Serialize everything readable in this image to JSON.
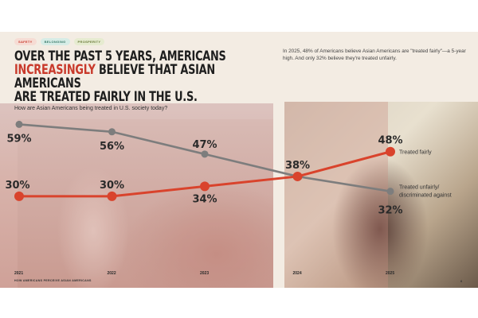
{
  "tags": [
    {
      "label": "SAFETY",
      "bg": "#f6dcd4",
      "fg": "#c8392b"
    },
    {
      "label": "BELONGING",
      "bg": "#d6ece6",
      "fg": "#3a7a6a"
    },
    {
      "label": "PROSPERITY",
      "bg": "#e6ebd0",
      "fg": "#6a7a3a"
    }
  ],
  "title": {
    "line1": "OVER THE PAST 5 YEARS, AMERICANS",
    "highlight": "INCREASINGLY",
    "line2_rest": " BELIEVE THAT ASIAN AMERICANS",
    "line3": "ARE TREATED FAIRLY IN THE U.S."
  },
  "description": "In 2025, 48% of Americans believe Asian Americans are \"treated fairly\"—a 5-year high. And only 32% believe they're treated unfairly.",
  "footer": "HOW AMERICANS PERCEIVE ASIAN AMERICANS",
  "page_number": "6",
  "chart_data": {
    "type": "line",
    "title": "How are Asian Americans being treated in U.S. society today?",
    "x": [
      "2021",
      "2022",
      "2023",
      "2024",
      "2025"
    ],
    "series": [
      {
        "name": "Treated fairly",
        "color": "#d9432c",
        "values": [
          30,
          30,
          34,
          38,
          48
        ],
        "labels": [
          "30%",
          "30%",
          "34%",
          "38%",
          "48%"
        ]
      },
      {
        "name": "Treated unfairly/ discriminated against",
        "legend_lines": [
          "Treated unfairly/",
          "discriminated against"
        ],
        "color": "#7d7d7d",
        "values": [
          59,
          56,
          47,
          38,
          32
        ],
        "labels": [
          "59%",
          "56%",
          "47%",
          "",
          "32%"
        ]
      }
    ],
    "ylim": [
      0,
      70
    ],
    "grid": false,
    "legend": "right"
  }
}
